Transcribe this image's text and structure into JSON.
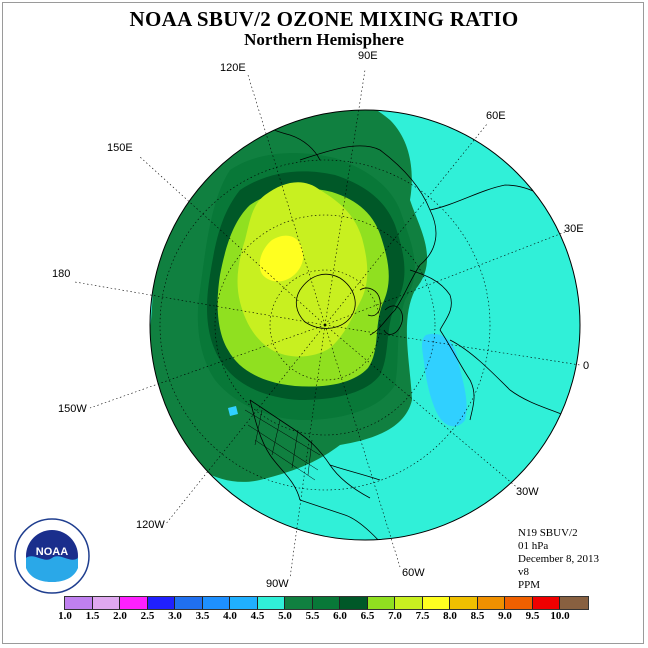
{
  "title": "NOAA SBUV/2 OZONE MIXING RATIO",
  "subtitle": "Northern Hemisphere",
  "longitudes": {
    "e90": "90E",
    "e60": "60E",
    "e30": "30E",
    "zero": "0",
    "w30": "30W",
    "w60": "60W",
    "w90": "90W",
    "w120": "120W",
    "w150": "150W",
    "dateline": "180",
    "e150": "150E",
    "e120": "120E"
  },
  "info": {
    "instrument": "N19 SBUV/2",
    "level": "01 hPa",
    "date": "December 8, 2013",
    "version": "v8",
    "units": "PPM"
  },
  "logo_text": "NOAA",
  "legend": {
    "labels": [
      "1.0",
      "1.5",
      "2.0",
      "2.5",
      "3.0",
      "3.5",
      "4.0",
      "4.5",
      "5.0",
      "5.5",
      "6.0",
      "6.5",
      "7.0",
      "7.5",
      "8.0",
      "8.5",
      "9.0",
      "9.5",
      "10.0"
    ],
    "colors": [
      "#c080f0",
      "#e0a8f0",
      "#ff20ff",
      "#2020ff",
      "#2070f0",
      "#1e90ff",
      "#20b0ff",
      "#30f0d8",
      "#108040",
      "#087838",
      "#005828",
      "#90e020",
      "#c8f020",
      "#ffff20",
      "#f0c000",
      "#f09000",
      "#f06000",
      "#f00000",
      "#886040"
    ]
  },
  "colors": {
    "ocean_field": "#30f0d8",
    "blue_patch": "#30d0ff",
    "band_5_0": "#108040",
    "band_5_5": "#087838",
    "band_6_0": "#005828",
    "band_6_5": "#90e020",
    "band_7_0": "#c8f020",
    "band_7_5": "#ffff20"
  }
}
